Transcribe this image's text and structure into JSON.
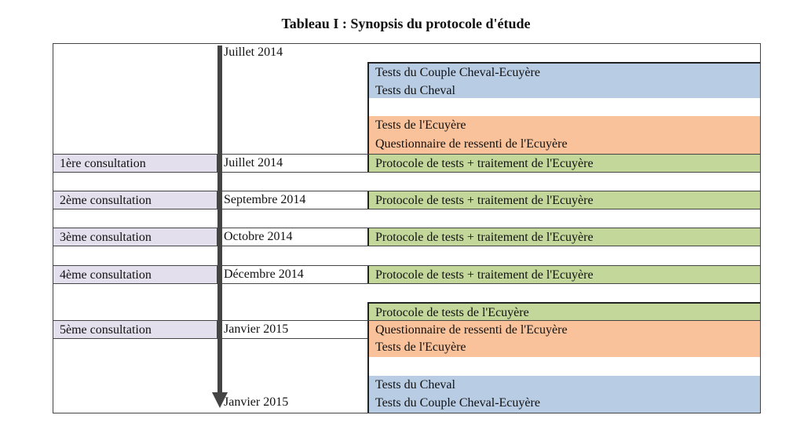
{
  "title": "Tableau I : Synopsis du protocole d'étude",
  "colors": {
    "horse": "#b8cce4",
    "rider": "#fac29a",
    "protocol": "#c4d79b",
    "consultation": "#e4dfec"
  },
  "start": {
    "date": "Juillet 2014",
    "blocks": [
      "Tests du Couple Cheval-Ecuyère",
      "Tests du Cheval",
      "Tests de l'Ecuyère",
      "Questionnaire de ressenti de l'Ecuyère"
    ]
  },
  "consultations": [
    {
      "label": "1ère consultation",
      "date": "Juillet 2014",
      "activity": "Protocole de tests + traitement de l'Ecuyère"
    },
    {
      "label": "2ème consultation",
      "date": "Septembre 2014",
      "activity": "Protocole de tests + traitement de l'Ecuyère"
    },
    {
      "label": "3ème consultation",
      "date": "Octobre 2014",
      "activity": "Protocole de tests + traitement de l'Ecuyère"
    },
    {
      "label": "4ème consultation",
      "date": "Décembre 2014",
      "activity": "Protocole de tests + traitement de l'Ecuyère"
    },
    {
      "label": "5ème consultation",
      "date": "Janvier 2015",
      "activity": "Questionnaire de ressenti de l'Ecuyère"
    }
  ],
  "end": {
    "date": "Janvier 2015",
    "pre": "Protocole de tests de l'Ecuyère",
    "blocks": [
      "Tests de l'Ecuyère",
      "Tests du Cheval",
      "Tests du Couple Cheval-Ecuyère"
    ]
  }
}
